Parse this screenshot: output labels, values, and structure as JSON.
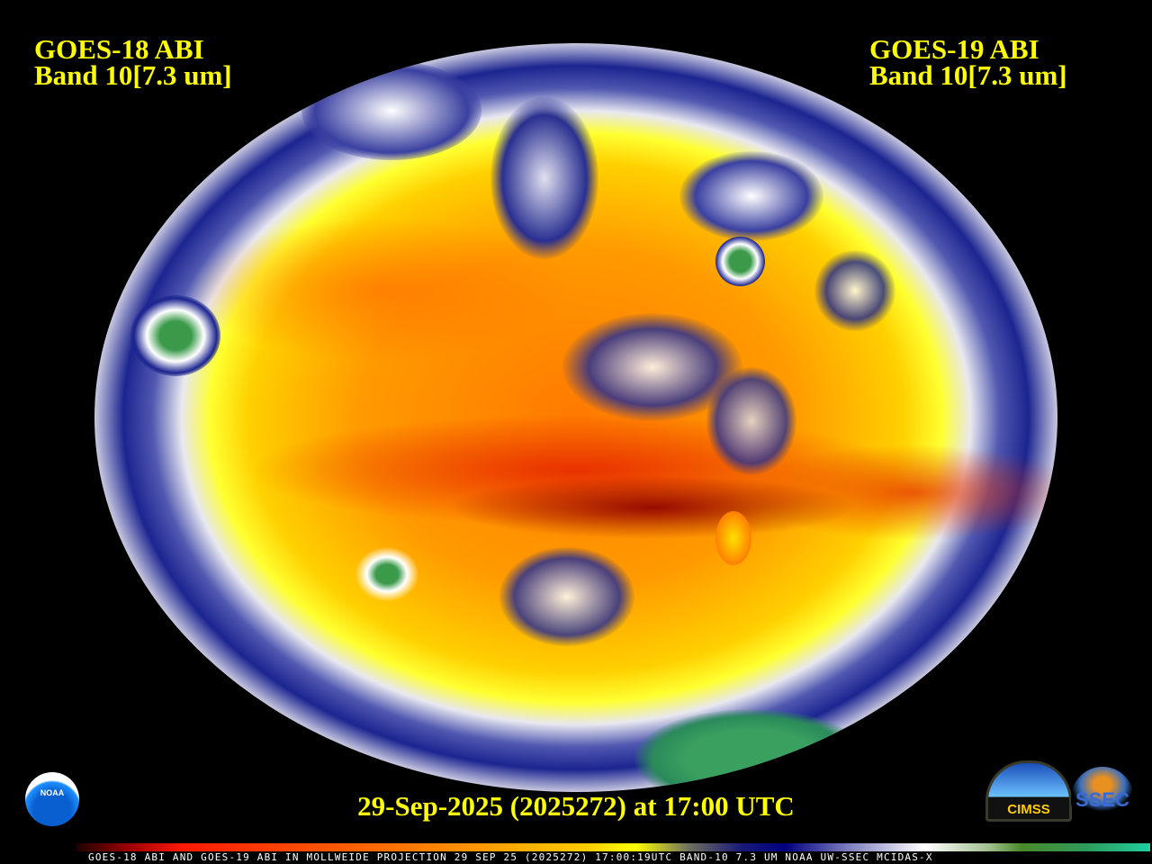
{
  "header": {
    "left_satellite": "GOES-18 ABI",
    "left_band": "Band 10[7.3 um]",
    "right_satellite": "GOES-19 ABI",
    "right_band": "Band 10[7.3 um]"
  },
  "timestamp": "29-Sep-2025 (2025272) at 17:00 UTC",
  "footer": "GOES-18 ABI AND GOES-19 ABI IN MOLLWEIDE PROJECTION 29 SEP 25 (2025272) 17:00:19UTC BAND-10 7.3 UM NOAA UW-SSEC MCIDAS-X",
  "logos": {
    "noaa": "NOAA",
    "cimss": "CIMSS",
    "ssec": "SSEC"
  },
  "map": {
    "projection": "Mollweide",
    "product": "water vapor imagery",
    "colors": {
      "dry": "#ff0000",
      "moist": "#000080",
      "cloud": "#ffffff",
      "cold": "#2e9a5a"
    }
  }
}
